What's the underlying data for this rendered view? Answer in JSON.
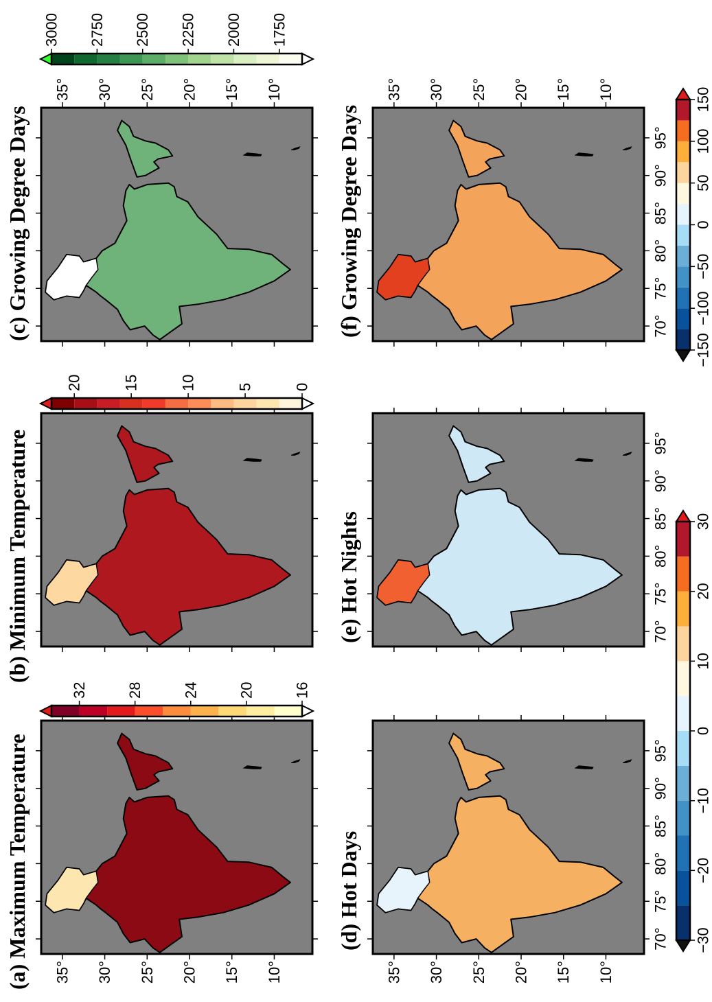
{
  "chart_data": {
    "type": "map",
    "lonlim": [
      68,
      99
    ],
    "latlim": [
      5.5,
      37.5
    ],
    "lat_ticks": [
      {
        "value": 35,
        "label": "35°"
      },
      {
        "value": 30,
        "label": "30°"
      },
      {
        "value": 25,
        "label": "25°"
      },
      {
        "value": 20,
        "label": "20°"
      },
      {
        "value": 15,
        "label": "15°"
      },
      {
        "value": 10,
        "label": "10°"
      }
    ],
    "lon_ticks": [
      {
        "value": 70,
        "label": "70°"
      },
      {
        "value": 75,
        "label": "75°"
      },
      {
        "value": 80,
        "label": "80°"
      },
      {
        "value": 85,
        "label": "85°"
      },
      {
        "value": 90,
        "label": "90°"
      },
      {
        "value": 95,
        "label": "95°"
      }
    ],
    "panels": [
      {
        "label": "(a) Maximum Temperature",
        "fill": "#8b0a14",
        "north_fill": "#fde6b0"
      },
      {
        "label": "(b) Minimum Temperature",
        "fill": "#b01820",
        "north_fill": "#fdd8a0"
      },
      {
        "label": "(c) Growing Degree Days",
        "fill": "#6fb27a",
        "north_fill": "#ffffff"
      },
      {
        "label": "(d) Hot Days",
        "fill": "#f5b062",
        "north_fill": "#e8f4fb"
      },
      {
        "label": "(e) Hot Nights",
        "fill": "#cfe8f6",
        "north_fill": "#f06030"
      },
      {
        "label": "(f) Growing Degree Days",
        "fill": "#f4a45a",
        "north_fill": "#e3401f"
      }
    ],
    "colorbars": [
      {
        "orientation": "vertical",
        "lim": [
          16,
          34
        ],
        "ticks": [
          32,
          28,
          24,
          20,
          16
        ],
        "colors": [
          "#ffffcc",
          "#ffeda0",
          "#fed976",
          "#feb24c",
          "#fd8d3c",
          "#fc4e2a",
          "#e31a1c",
          "#bd0026",
          "#800026"
        ],
        "extend_low": "#ffffff",
        "extend_high": "#e31a1c"
      },
      {
        "orientation": "vertical",
        "lim": [
          0,
          22
        ],
        "ticks": [
          20,
          15,
          10,
          5,
          0
        ],
        "colors": [
          "#fff5dc",
          "#ffe8b0",
          "#fdd49e",
          "#fdbb84",
          "#fc8d59",
          "#f46d43",
          "#ef3b2c",
          "#d7301f",
          "#c81d25",
          "#a50f15",
          "#7f0000"
        ],
        "extend_low": "#ffffff",
        "extend_high": "#e31a1c"
      },
      {
        "orientation": "vertical",
        "lim": [
          1625,
          3000
        ],
        "ticks": [
          3000,
          2750,
          2500,
          2250,
          2000,
          1750
        ],
        "colors": [
          "#fbfdf0",
          "#eef6d6",
          "#d9f0c2",
          "#bfe3a6",
          "#a1d48c",
          "#7fc27a",
          "#5cad68",
          "#3e9655",
          "#237f42",
          "#10682f",
          "#00441b"
        ],
        "extend_low": "#ffffff",
        "extend_high": "#33ff33"
      },
      {
        "orientation": "horizontal",
        "lim": [
          -30,
          30
        ],
        "ticks": [
          {
            "value": -30,
            "label": "−30"
          },
          {
            "value": -20,
            "label": "−20"
          },
          {
            "value": -10,
            "label": "−10"
          },
          0,
          10,
          20,
          30
        ],
        "colors": [
          "#08306b",
          "#08519c",
          "#2171b5",
          "#4292c6",
          "#6baed6",
          "#a6dcf5",
          "#e6f5fd",
          "#fff8e1",
          "#fdd49e",
          "#fdae3b",
          "#f46d20",
          "#b2182b"
        ],
        "extend_low": "#111111",
        "extend_high": "#e31a1c"
      },
      {
        "orientation": "horizontal",
        "lim": [
          -150,
          150
        ],
        "ticks": [
          {
            "value": -150,
            "label": "−150"
          },
          {
            "value": -100,
            "label": "−100"
          },
          {
            "value": -50,
            "label": "−50"
          },
          0,
          50,
          100,
          150
        ],
        "colors": [
          "#08306b",
          "#08519c",
          "#2171b5",
          "#4292c6",
          "#6baed6",
          "#a6dcf5",
          "#e6f5fd",
          "#fff8e1",
          "#fdd49e",
          "#fdae3b",
          "#f46d20",
          "#b2182b"
        ],
        "extend_low": "#111111",
        "extend_high": "#e31a1c"
      }
    ]
  }
}
